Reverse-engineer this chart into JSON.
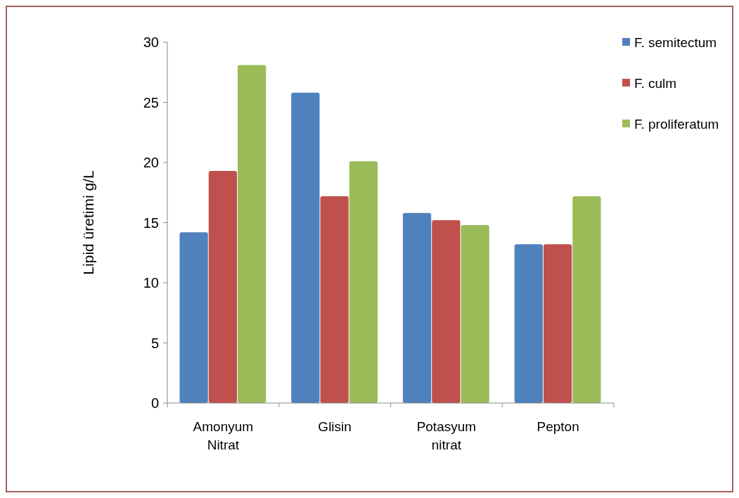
{
  "chart_data": {
    "type": "bar",
    "ylabel": "Lipid üretimi g/L",
    "categories": [
      "Amonyum Nitrat",
      "Glisin",
      "Potasyum nitrat",
      "Pepton"
    ],
    "series": [
      {
        "name": "F. semitectum",
        "color": "#4f81bd",
        "values": [
          14.2,
          25.8,
          15.8,
          13.2
        ]
      },
      {
        "name": "F. culm",
        "color": "#c0504d",
        "values": [
          19.3,
          17.2,
          15.2,
          13.2
        ]
      },
      {
        "name": "F. proliferatum",
        "color": "#9bbb59",
        "values": [
          28.1,
          20.1,
          14.8,
          17.2
        ]
      }
    ],
    "ylim": [
      0,
      30
    ],
    "yticks": [
      0,
      5,
      10,
      15,
      20,
      25,
      30
    ],
    "legend": "top right"
  }
}
